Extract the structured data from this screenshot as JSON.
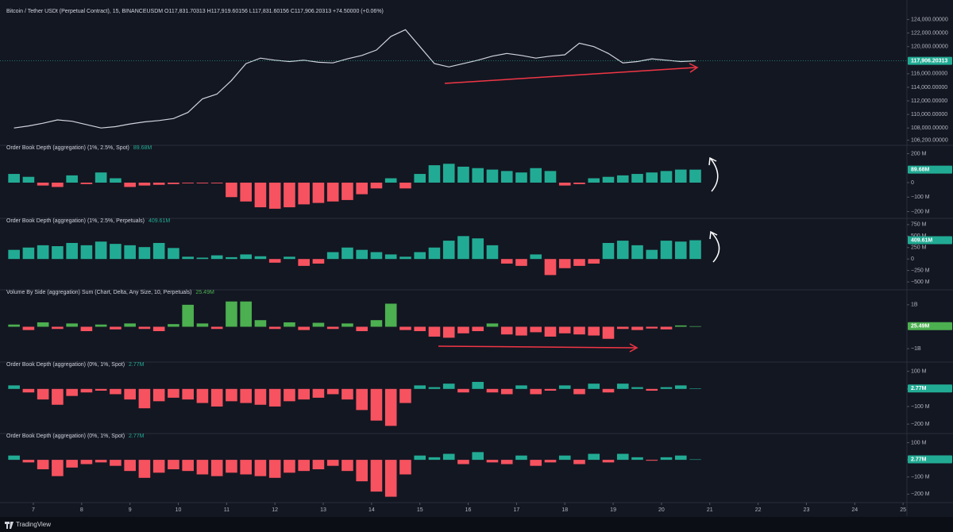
{
  "chart_data": [
    {
      "type": "line",
      "title": "Bitcoin / Tether USDt (Perpetual Contract), 15, BINANCEUSDM  O117,831.70313 H117,919.60156 L117,831.60156 C117,906.20313 +74.50000 (+0.06%)",
      "color": "#d1d4dc",
      "values": [
        108000,
        108300,
        108700,
        109200,
        109000,
        108500,
        108000,
        108200,
        108600,
        108900,
        109100,
        109400,
        110300,
        112300,
        113000,
        115000,
        117500,
        118300,
        118000,
        117800,
        118000,
        117700,
        117600,
        118200,
        118700,
        119500,
        121500,
        122500,
        120000,
        117500,
        117000,
        117500,
        118000,
        118600,
        119000,
        118700,
        118300,
        118600,
        118800,
        120500,
        120000,
        119000,
        117600,
        117800,
        118200,
        118000,
        117800,
        117906.20313
      ],
      "ylim": [
        105800,
        125000
      ],
      "yticks": [
        {
          "value": 124000,
          "label": "124,000.00000"
        },
        {
          "value": 122000,
          "label": "122,000.00000"
        },
        {
          "value": 120000,
          "label": "120,000.00000"
        },
        {
          "value": 116000,
          "label": "116,000.00000"
        },
        {
          "value": 114000,
          "label": "114,000.00000"
        },
        {
          "value": 112000,
          "label": "112,000.00000"
        },
        {
          "value": 110000,
          "label": "110,000.00000"
        },
        {
          "value": 108000,
          "label": "108,000.00000"
        },
        {
          "value": 106200,
          "label": "106,200.00000"
        }
      ],
      "last": {
        "value": 117906.20313,
        "label": "117,906.20313"
      }
    },
    {
      "type": "bar",
      "title": "Order Book Depth (aggregation) (1%, 2.5%, Spot)",
      "up_color": "#22ab94",
      "down_color": "#f7525f",
      "values": [
        60,
        40,
        -20,
        -30,
        50,
        -10,
        70,
        30,
        -30,
        -20,
        -15,
        -10,
        -5,
        -5,
        -5,
        -100,
        -130,
        -170,
        -180,
        -170,
        -150,
        -140,
        -130,
        -120,
        -80,
        -40,
        30,
        -40,
        60,
        120,
        130,
        110,
        100,
        90,
        80,
        70,
        100,
        80,
        -20,
        -10,
        30,
        40,
        50,
        60,
        70,
        80,
        90,
        89.68
      ],
      "ylim": [
        -230,
        230
      ],
      "yticks": [
        {
          "value": 200,
          "label": "200 M"
        },
        0,
        {
          "value": -100,
          "label": "−100 M"
        },
        {
          "value": -200,
          "label": "−200 M"
        }
      ],
      "last": {
        "value": 89.68,
        "label": "89.68M"
      }
    },
    {
      "type": "bar",
      "title": "Order Book Depth (aggregation) (1%, 2.5%, Perpetuals)",
      "up_color": "#22ab94",
      "down_color": "#f7525f",
      "values": [
        200,
        250,
        300,
        280,
        350,
        300,
        380,
        330,
        300,
        260,
        350,
        240,
        50,
        30,
        80,
        40,
        100,
        60,
        -80,
        50,
        -150,
        -100,
        150,
        250,
        200,
        150,
        100,
        50,
        150,
        250,
        400,
        500,
        450,
        300,
        -100,
        -150,
        100,
        -350,
        -200,
        -150,
        -100,
        350,
        400,
        300,
        200,
        400,
        380,
        409.61
      ],
      "ylim": [
        -620,
        800
      ],
      "yticks": [
        {
          "value": 750,
          "label": "750 M"
        },
        {
          "value": 500,
          "label": "500 M"
        },
        {
          "value": 250,
          "label": "250 M"
        },
        0,
        {
          "value": -250,
          "label": "−250 M"
        },
        {
          "value": -500,
          "label": "−500 M"
        }
      ],
      "last": {
        "value": 409.61,
        "label": "409.61M"
      }
    },
    {
      "type": "bar",
      "title": "Volume By Side (aggregation) Sum (Chart, Delta, Any Size, 10, Perpetuals)",
      "up_color": "#4caf50",
      "down_color": "#f7525f",
      "values": [
        100,
        -150,
        200,
        -100,
        150,
        -200,
        100,
        -120,
        150,
        -100,
        -200,
        120,
        1000,
        150,
        -100,
        1150,
        1150,
        300,
        -100,
        200,
        -150,
        180,
        -100,
        150,
        -200,
        300,
        1050,
        -150,
        -200,
        -450,
        -500,
        -300,
        -200,
        150,
        -350,
        -400,
        -250,
        -450,
        -300,
        -350,
        -400,
        -550,
        -100,
        -150,
        -80,
        -120,
        60,
        25.49
      ],
      "ylim": [
        -1500,
        1500
      ],
      "yticks": [
        {
          "value": 1000,
          "label": "1B"
        },
        {
          "value": -1000,
          "label": "−1B"
        }
      ],
      "last": {
        "value": 25.49,
        "label": "25.49M"
      }
    },
    {
      "type": "bar",
      "title": "Order Book Depth (aggregation) (0%, 1%, Spot)",
      "up_color": "#22ab94",
      "down_color": "#f7525f",
      "values": [
        20,
        -20,
        -60,
        -90,
        -40,
        -20,
        -10,
        -30,
        -60,
        -110,
        -70,
        -50,
        -60,
        -80,
        -100,
        -70,
        -80,
        -90,
        -100,
        -70,
        -60,
        -50,
        -30,
        -60,
        -120,
        -180,
        -210,
        -80,
        20,
        10,
        30,
        -20,
        40,
        -20,
        -30,
        20,
        -30,
        -10,
        20,
        -30,
        30,
        -20,
        30,
        10,
        -10,
        10,
        20,
        2.77
      ],
      "ylim": [
        -240,
        130
      ],
      "yticks": [
        {
          "value": 100,
          "label": "100 M"
        },
        0,
        {
          "value": -100,
          "label": "−100 M"
        },
        {
          "value": -200,
          "label": "−200 M"
        }
      ],
      "last": {
        "value": 2.77,
        "label": "2.77M"
      }
    },
    {
      "type": "bar",
      "title": "Order Book Depth (aggregation) (0%, 1%, Spot)",
      "up_color": "#22ab94",
      "down_color": "#f7525f",
      "values": [
        25,
        -15,
        -55,
        -95,
        -45,
        -25,
        -15,
        -35,
        -65,
        -105,
        -75,
        -55,
        -65,
        -85,
        -95,
        -75,
        -85,
        -95,
        -105,
        -75,
        -65,
        -55,
        -35,
        -65,
        -125,
        -185,
        -215,
        -85,
        25,
        15,
        35,
        -25,
        45,
        -15,
        -25,
        25,
        -35,
        -15,
        25,
        -25,
        35,
        -15,
        35,
        15,
        -5,
        15,
        25,
        2.77
      ],
      "ylim": [
        -240,
        130
      ],
      "yticks": [
        {
          "value": 100,
          "label": "100 M"
        },
        0,
        {
          "value": -100,
          "label": "−100 M"
        },
        {
          "value": -200,
          "label": "−200 M"
        }
      ],
      "last": {
        "value": 2.77,
        "label": "2.77M"
      }
    }
  ],
  "time_axis": {
    "xlim": [
      6.31,
      25.08
    ],
    "xticks": [
      7,
      8,
      9,
      10,
      11,
      12,
      13,
      14,
      15,
      16,
      17,
      18,
      19,
      20,
      21,
      22,
      23,
      24,
      25
    ],
    "x": [
      6.6,
      6.9,
      7.2,
      7.5,
      7.8,
      8.1,
      8.4,
      8.7,
      9.0,
      9.3,
      9.6,
      9.9,
      10.2,
      10.5,
      10.8,
      11.1,
      11.4,
      11.7,
      12.0,
      12.3,
      12.6,
      12.9,
      13.2,
      13.5,
      13.8,
      14.1,
      14.4,
      14.7,
      15.0,
      15.3,
      15.6,
      15.9,
      16.2,
      16.5,
      16.8,
      17.1,
      17.4,
      17.7,
      18.0,
      18.3,
      18.6,
      18.9,
      19.2,
      19.5,
      19.8,
      20.1,
      20.4,
      20.7
    ]
  },
  "brand": "TradingView"
}
